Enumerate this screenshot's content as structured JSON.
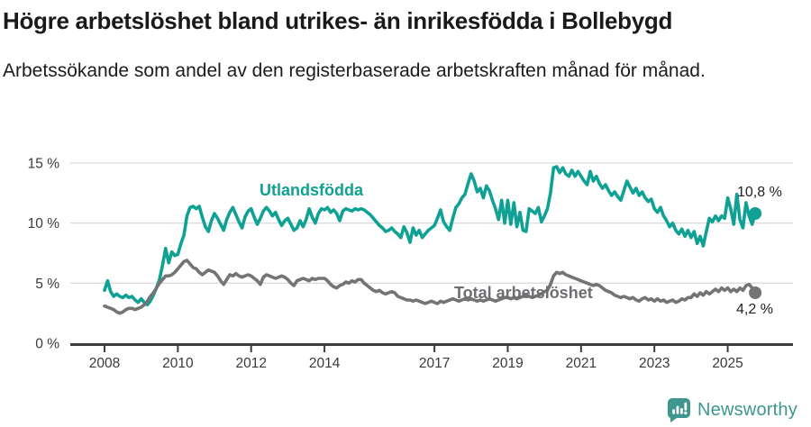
{
  "header": {
    "title": "Högre arbetslöshet bland utrikes- än inrikesfödda i Bollebygd",
    "subtitle": "Arbetssökande som andel av den registerbaserade arbetskraften månad för månad."
  },
  "chart_data": {
    "type": "line",
    "title": "Högre arbetslöshet bland utrikes- än inrikesfödda i Bollebygd",
    "subtitle": "Arbetssökande som andel av den registerbaserade arbetskraften månad för månad.",
    "x_unit": "month",
    "x_start": "2008-01",
    "x_end": "2025-10",
    "x_ticks": [
      2008,
      2010,
      2012,
      2014,
      2017,
      2019,
      2021,
      2023,
      2025
    ],
    "x_tick_labels": [
      "2008",
      "2010",
      "2012",
      "2014",
      "2017",
      "2019",
      "2021",
      "2023",
      "2025"
    ],
    "y_ticks": [
      0,
      5,
      10,
      15
    ],
    "y_tick_labels": [
      "0 %",
      "5 %",
      "10 %",
      "15 %"
    ],
    "ylim": [
      0,
      16
    ],
    "grid": "horizontal",
    "grid_color": "#dcdcdc",
    "axis_color": "#3c3c3c",
    "legend_position": "inline-labels",
    "series": [
      {
        "name": "Utlandsfödda",
        "color": "#0fa294",
        "end_label": "10,8 %",
        "end_value": 10.8,
        "values": [
          4.4,
          5.2,
          4.3,
          3.9,
          4.1,
          3.9,
          3.8,
          4.0,
          3.8,
          3.9,
          3.6,
          3.4,
          3.7,
          3.4,
          3.2,
          3.5,
          4.0,
          4.6,
          5.3,
          6.5,
          7.9,
          6.7,
          7.6,
          7.3,
          7.4,
          8.3,
          9.0,
          10.6,
          11.3,
          11.4,
          11.2,
          11.4,
          10.5,
          9.7,
          9.3,
          10.2,
          10.8,
          10.4,
          9.9,
          9.4,
          10.3,
          10.9,
          11.3,
          10.7,
          10.1,
          9.6,
          10.5,
          11.0,
          11.2,
          10.5,
          9.9,
          10.4,
          11.0,
          11.3,
          11.0,
          10.6,
          10.9,
          10.3,
          9.8,
          10.2,
          10.4,
          9.9,
          9.4,
          9.6,
          10.2,
          9.7,
          10.3,
          11.2,
          10.5,
          10.0,
          10.8,
          11.2,
          11.1,
          11.3,
          10.9,
          11.1,
          10.8,
          10.2,
          11.0,
          11.2,
          11.1,
          11.0,
          11.2,
          11.1,
          11.2,
          11.1,
          10.9,
          10.7,
          10.4,
          10.1,
          9.8,
          9.6,
          9.3,
          9.4,
          9.6,
          9.3,
          9.1,
          8.8,
          9.7,
          9.2,
          8.4,
          9.6,
          9.0,
          9.4,
          8.8,
          9.1,
          9.4,
          9.6,
          9.8,
          10.4,
          11.1,
          10.1,
          9.7,
          9.4,
          10.4,
          11.3,
          11.6,
          12.1,
          12.4,
          13.3,
          14.1,
          13.5,
          12.6,
          12.9,
          12.1,
          13.1,
          12.7,
          11.9,
          11.2,
          10.3,
          11.9,
          10.0,
          11.9,
          9.9,
          11.7,
          9.7,
          10.9,
          9.4,
          9.3,
          11.2,
          11.0,
          10.8,
          11.3,
          10.1,
          10.6,
          11.2,
          12.5,
          14.6,
          14.7,
          14.2,
          14.6,
          14.1,
          13.9,
          14.4,
          13.9,
          14.3,
          13.9,
          13.5,
          13.2,
          14.3,
          13.5,
          13.9,
          13.3,
          12.9,
          13.2,
          12.7,
          12.3,
          12.6,
          12.2,
          11.9,
          12.7,
          13.5,
          13.0,
          12.5,
          12.9,
          12.3,
          12.6,
          12.1,
          11.8,
          12.0,
          11.2,
          10.9,
          11.3,
          10.6,
          10.2,
          9.7,
          10.0,
          9.4,
          9.1,
          9.5,
          8.9,
          9.4,
          8.8,
          9.3,
          8.3,
          8.9,
          8.1,
          9.3,
          10.4,
          10.1,
          10.6,
          10.2,
          10.6,
          10.4,
          12.1,
          11.2,
          9.9,
          12.4,
          10.3,
          9.6,
          11.7,
          10.6,
          9.9,
          10.8
        ]
      },
      {
        "name": "Total arbetslöshet",
        "color": "#747474",
        "end_label": "4,2 %",
        "end_value": 4.2,
        "values": [
          3.1,
          3.0,
          2.9,
          2.8,
          2.6,
          2.5,
          2.6,
          2.8,
          2.9,
          2.9,
          2.8,
          2.9,
          3.0,
          3.2,
          3.5,
          3.9,
          4.2,
          4.6,
          5.0,
          5.3,
          5.6,
          5.6,
          5.7,
          5.9,
          6.2,
          6.5,
          6.8,
          6.9,
          6.6,
          6.3,
          6.2,
          5.9,
          5.7,
          5.9,
          6.1,
          6.0,
          5.9,
          5.6,
          5.2,
          4.9,
          5.3,
          5.7,
          5.6,
          5.8,
          5.6,
          5.5,
          5.6,
          5.7,
          5.6,
          5.4,
          5.2,
          4.9,
          5.5,
          5.7,
          5.6,
          5.5,
          5.4,
          5.5,
          5.6,
          5.5,
          5.3,
          5.0,
          4.8,
          5.2,
          5.3,
          5.4,
          5.3,
          5.2,
          5.4,
          5.3,
          5.4,
          5.4,
          5.4,
          5.2,
          4.9,
          4.7,
          4.6,
          4.8,
          4.9,
          5.1,
          5.0,
          5.2,
          5.1,
          5.3,
          5.3,
          5.0,
          4.8,
          4.6,
          4.4,
          4.3,
          4.4,
          4.2,
          4.1,
          4.2,
          4.3,
          4.2,
          3.9,
          3.8,
          3.7,
          3.6,
          3.6,
          3.5,
          3.6,
          3.5,
          3.4,
          3.3,
          3.4,
          3.5,
          3.4,
          3.3,
          3.5,
          3.4,
          3.5,
          3.6,
          3.7,
          3.6,
          3.5,
          3.6,
          3.7,
          3.6,
          3.7,
          3.6,
          3.5,
          3.6,
          3.5,
          3.6,
          3.7,
          3.6,
          3.5,
          3.6,
          3.7,
          3.8,
          3.8,
          3.7,
          3.8,
          3.7,
          3.8,
          3.9,
          4.0,
          3.9,
          3.8,
          3.9,
          4.0,
          4.1,
          4.3,
          4.4,
          4.9,
          5.6,
          5.9,
          5.8,
          5.9,
          5.7,
          5.6,
          5.5,
          5.4,
          5.3,
          5.2,
          5.1,
          5.0,
          4.9,
          4.8,
          4.9,
          4.8,
          4.6,
          4.4,
          4.3,
          4.2,
          4.0,
          3.9,
          3.8,
          3.9,
          3.8,
          3.7,
          3.8,
          3.6,
          3.5,
          3.7,
          3.8,
          3.6,
          3.7,
          3.5,
          3.7,
          3.5,
          3.6,
          3.4,
          3.5,
          3.6,
          3.4,
          3.5,
          3.7,
          3.6,
          3.8,
          3.8,
          4.1,
          3.9,
          4.2,
          4.0,
          4.3,
          4.1,
          4.3,
          4.5,
          4.3,
          4.6,
          4.4,
          4.6,
          4.3,
          4.5,
          4.3,
          4.6,
          4.4,
          4.8,
          4.9,
          4.6,
          4.2
        ]
      }
    ]
  },
  "footer": {
    "brand": "Newsworthy",
    "brand_color": "#3e968f",
    "logo_icon": "bar-chart-speech-bubble"
  }
}
